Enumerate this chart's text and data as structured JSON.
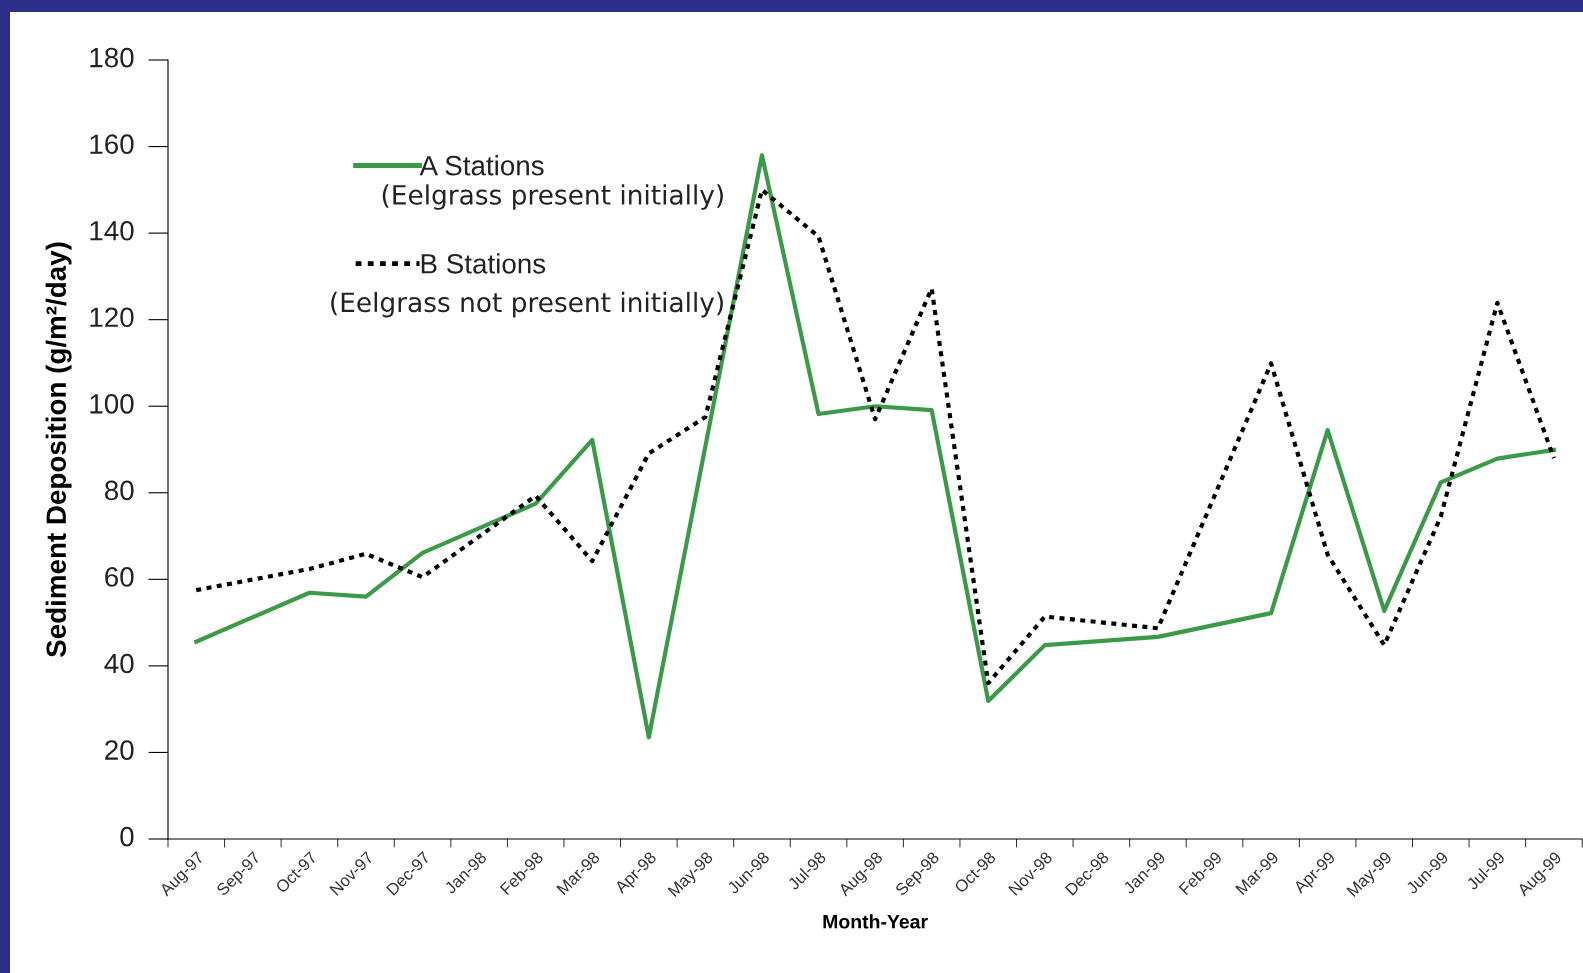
{
  "chart_data": {
    "type": "line",
    "xlabel": "Month-Year",
    "ylabel": "Sediment Deposition (g/m²/day)",
    "categories": [
      "Aug-97",
      "Sep-97",
      "Oct-97",
      "Nov-97",
      "Dec-97",
      "Jan-98",
      "Feb-98",
      "Mar-98",
      "Apr-98",
      "May-98",
      "Jun-98",
      "Jul-98",
      "Aug-98",
      "Sep-98",
      "Oct-98",
      "Nov-98",
      "Dec-98",
      "Jan-99",
      "Feb-99",
      "Mar-99",
      "Apr-99",
      "May-99",
      "Jun-99",
      "Jul-99",
      "Aug-99"
    ],
    "series": [
      {
        "name": "A Stations",
        "color": "#3a9a48",
        "line_style": "solid",
        "values": [
          45.6,
          null,
          56.9,
          56.0,
          66.1,
          null,
          77.5,
          92.2,
          23.5,
          null,
          158,
          98.2,
          100,
          99.1,
          31.9,
          44.8,
          null,
          46.7,
          null,
          52.2,
          94.5,
          52.7,
          82.4,
          87.9,
          89.9
        ]
      },
      {
        "name": "B Stations",
        "color": "#000000",
        "line_style": "dashed",
        "values": [
          57.5,
          null,
          62.4,
          65.9,
          60.5,
          null,
          79.3,
          64.2,
          89.1,
          97.5,
          150,
          139.2,
          97,
          127.2,
          36.0,
          51.4,
          null,
          48.7,
          null,
          109.9,
          65.7,
          44.8,
          74.5,
          123.9,
          88
        ]
      }
    ],
    "annotations": [
      "(Eelgrass present initially)",
      "(Eelgrass not present initially)"
    ],
    "ylim": [
      0,
      180
    ],
    "yticks": [
      0,
      20,
      40,
      60,
      80,
      100,
      120,
      140,
      160,
      180
    ],
    "grid": false,
    "legend": "top left",
    "marker": "none"
  }
}
